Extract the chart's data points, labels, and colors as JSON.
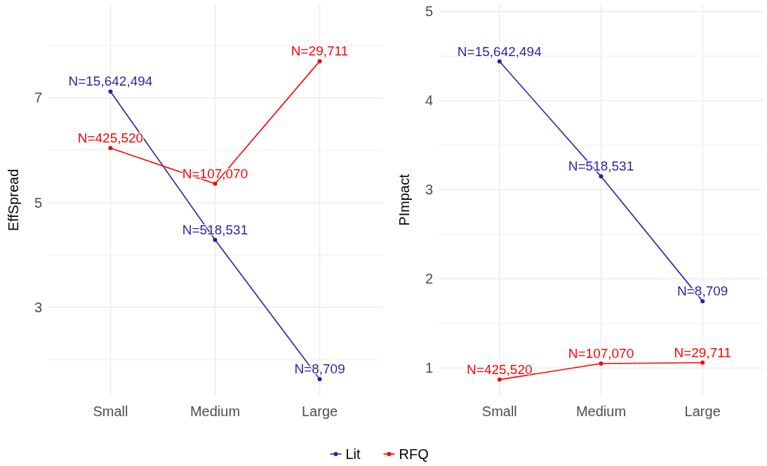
{
  "chart_data": [
    {
      "type": "line",
      "ylabel": "EffSpread",
      "categories": [
        "Small",
        "Medium",
        "Large"
      ],
      "ylim": [
        1.3,
        8.8
      ],
      "yticks": [
        {
          "value": 2,
          "label": null
        },
        3,
        {
          "value": 4,
          "label": null
        },
        5,
        {
          "value": 6,
          "label": null
        },
        7,
        {
          "value": 8,
          "label": null
        }
      ],
      "grid": true,
      "marker": "circle",
      "line_style": "solid",
      "legend": "bottom",
      "series": [
        {
          "name": "Lit",
          "color": "#2b1fa8",
          "values": [
            7.12,
            4.29,
            1.63
          ]
        },
        {
          "name": "RFQ",
          "color": "#ff0000",
          "values": [
            6.04,
            5.36,
            7.7
          ]
        }
      ],
      "annotations": [
        {
          "text": "N=15,642,494",
          "x": "Small",
          "y": 7.12
        },
        {
          "text": "N=518,531",
          "x": "Medium",
          "y": 4.29
        },
        {
          "text": "N=8,709",
          "x": "Large",
          "y": 1.63
        },
        {
          "text": "N=425,520",
          "x": "Small",
          "y": 6.04
        },
        {
          "text": "N=107,070",
          "x": "Medium",
          "y": 5.36
        },
        {
          "text": "N=29,711",
          "x": "Large",
          "y": 7.7
        }
      ]
    },
    {
      "type": "line",
      "ylabel": "PImpact",
      "categories": [
        "Small",
        "Medium",
        "Large"
      ],
      "ylim": [
        0.68,
        5.09
      ],
      "yticks": [
        1,
        {
          "value": 1.5,
          "label": null
        },
        2,
        {
          "value": 2.5,
          "label": null
        },
        3,
        {
          "value": 3.5,
          "label": null
        },
        4,
        {
          "value": 4.5,
          "label": null
        },
        5
      ],
      "grid": true,
      "marker": "circle",
      "line_style": "solid",
      "legend": "bottom",
      "series": [
        {
          "name": "Lit",
          "color": "#2b1fa8",
          "values": [
            4.44,
            3.15,
            1.75
          ]
        },
        {
          "name": "RFQ",
          "color": "#ff0000",
          "values": [
            0.87,
            1.05,
            1.06
          ]
        }
      ],
      "annotations": [
        {
          "text": "N=15,642,494",
          "x": "Small",
          "y": 4.44
        },
        {
          "text": "N=518,531",
          "x": "Medium",
          "y": 3.15
        },
        {
          "text": "N=8,709",
          "x": "Large",
          "y": 1.75
        },
        {
          "text": "N=425,520",
          "x": "Small",
          "y": 0.87
        },
        {
          "text": "N=107,070",
          "x": "Medium",
          "y": 1.05
        },
        {
          "text": "N=29,711",
          "x": "Large",
          "y": 1.06
        }
      ]
    }
  ]
}
